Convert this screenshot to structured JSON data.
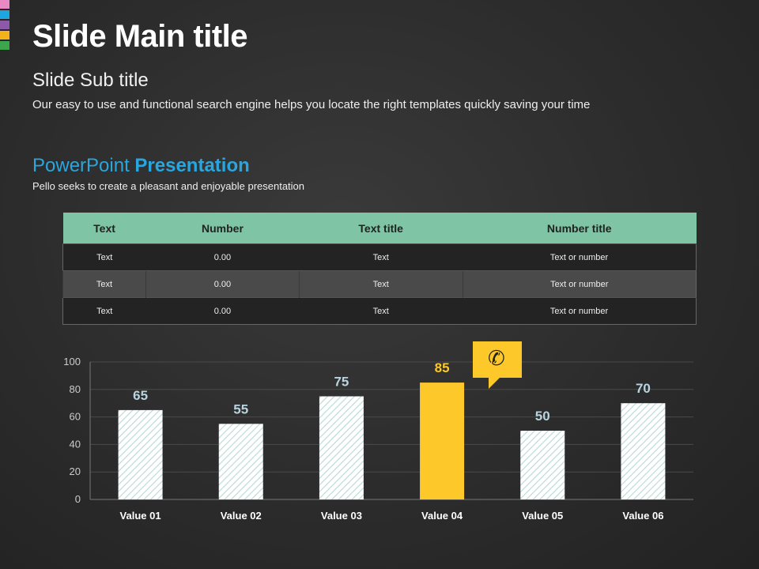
{
  "brand_colors": [
    "#e889c5",
    "#1ea6e0",
    "#8e59a8",
    "#f4b21a",
    "#3da54b"
  ],
  "header": {
    "main_title": "Slide Main title",
    "sub_title": "Slide Sub title",
    "description": "Our easy to use and functional search engine helps you locate the right templates quickly saving your time"
  },
  "section": {
    "heading_light": "PowerPoint",
    "heading_bold": "Presentation",
    "description": "Pello seeks to create a pleasant and enjoyable presentation"
  },
  "table": {
    "headers": [
      "Text",
      "Number",
      "Text title",
      "Number title"
    ],
    "rows": [
      [
        "Text",
        "0.00",
        "Text",
        "Text or number"
      ],
      [
        "Text",
        "0.00",
        "Text",
        "Text or number"
      ],
      [
        "Text",
        "0.00",
        "Text",
        "Text or number"
      ]
    ]
  },
  "callout": {
    "icon": "phone-icon"
  },
  "chart_data": {
    "type": "bar",
    "categories": [
      "Value 01",
      "Value 02",
      "Value 03",
      "Value 04",
      "Value 05",
      "Value 06"
    ],
    "values": [
      65,
      55,
      75,
      85,
      50,
      70
    ],
    "highlight_index": 3,
    "ylim": [
      0,
      100
    ],
    "yticks": [
      0,
      20,
      40,
      60,
      80,
      100
    ],
    "grid": true,
    "colors": {
      "bar_pattern": "#b8d8d4",
      "highlight": "#fdc82a",
      "label": "#b8d4e0",
      "highlight_label": "#fdc82a"
    }
  }
}
